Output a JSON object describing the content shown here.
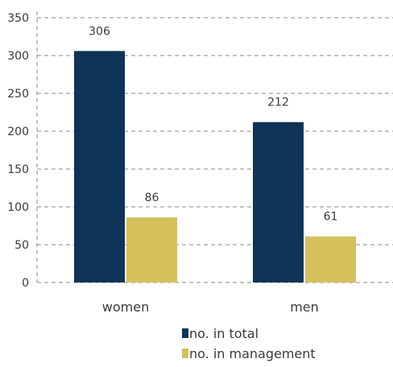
{
  "chart_data": {
    "type": "bar",
    "title": "",
    "xlabel": "",
    "ylabel": "",
    "categories": [
      "women",
      "men"
    ],
    "ylim": [
      0,
      350
    ],
    "yticks": [
      0,
      50,
      100,
      150,
      200,
      250,
      300,
      350
    ],
    "grid": true,
    "legend_position": "bottom",
    "series": [
      {
        "name": "no. in total",
        "color": "#0f3457",
        "values": [
          306,
          212
        ]
      },
      {
        "name": "no. in management",
        "color": "#d4c15c",
        "values": [
          86,
          61
        ]
      }
    ]
  }
}
